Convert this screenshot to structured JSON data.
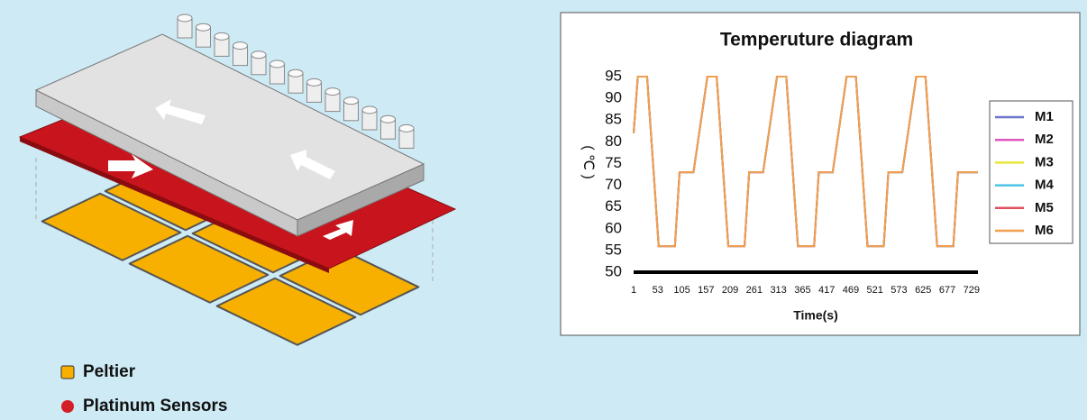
{
  "chart_data": {
    "type": "line",
    "title": "Temperuture diagram",
    "x_label": "Time(s)",
    "y_label": "( ℃ )",
    "x": [
      1,
      10,
      30,
      55,
      90,
      100,
      130,
      160,
      180,
      205,
      240,
      250,
      280,
      310,
      330,
      355,
      390,
      400,
      430,
      460,
      480,
      505,
      540,
      550,
      580,
      610,
      630,
      655,
      690,
      700,
      743
    ],
    "xlim": [
      1,
      743
    ],
    "xticks": [
      1,
      53,
      105,
      157,
      209,
      261,
      313,
      365,
      417,
      469,
      521,
      573,
      625,
      677,
      729
    ],
    "ylim": [
      50,
      95
    ],
    "yticks": [
      50,
      55,
      60,
      65,
      70,
      75,
      80,
      85,
      90,
      95
    ],
    "grid": false,
    "legend": "right",
    "series": [
      {
        "name": "M1",
        "color": "#6b74c8",
        "values": [
          82,
          95,
          95,
          56,
          56,
          73,
          73,
          95,
          95,
          56,
          56,
          73,
          73,
          95,
          95,
          56,
          56,
          73,
          73,
          95,
          95,
          56,
          56,
          73,
          73,
          95,
          95,
          56,
          56,
          73,
          73
        ]
      },
      {
        "name": "M2",
        "color": "#e055c0",
        "values": [
          82,
          95,
          95,
          56,
          56,
          73,
          73,
          95,
          95,
          56,
          56,
          73,
          73,
          95,
          95,
          56,
          56,
          73,
          73,
          95,
          95,
          56,
          56,
          73,
          73,
          95,
          95,
          56,
          56,
          73,
          73
        ]
      },
      {
        "name": "M3",
        "color": "#e8e838",
        "values": [
          82,
          95,
          95,
          56,
          56,
          73,
          73,
          95,
          95,
          56,
          56,
          73,
          73,
          95,
          95,
          56,
          56,
          73,
          73,
          95,
          95,
          56,
          56,
          73,
          73,
          95,
          95,
          56,
          56,
          73,
          73
        ]
      },
      {
        "name": "M4",
        "color": "#4fc3e8",
        "values": [
          82,
          95,
          95,
          56,
          56,
          73,
          73,
          95,
          95,
          56,
          56,
          73,
          73,
          95,
          95,
          56,
          56,
          73,
          73,
          95,
          95,
          56,
          56,
          73,
          73,
          95,
          95,
          56,
          56,
          73,
          73
        ]
      },
      {
        "name": "M5",
        "color": "#e05060",
        "values": [
          82,
          95,
          95,
          56,
          56,
          73,
          73,
          95,
          95,
          56,
          56,
          73,
          73,
          95,
          95,
          56,
          56,
          73,
          73,
          95,
          95,
          56,
          56,
          73,
          73,
          95,
          95,
          56,
          56,
          73,
          73
        ]
      },
      {
        "name": "M6",
        "color": "#f0a050",
        "values": [
          82,
          95,
          95,
          56,
          56,
          73,
          73,
          95,
          95,
          56,
          56,
          73,
          73,
          95,
          95,
          56,
          56,
          73,
          73,
          95,
          95,
          56,
          56,
          73,
          73,
          95,
          95,
          56,
          56,
          73,
          73
        ]
      }
    ]
  },
  "diagram_legend": {
    "items": [
      {
        "label": "Peltier",
        "color": "#f7b000"
      },
      {
        "label": "Platinum Sensors",
        "color": "#d41f26"
      }
    ]
  }
}
